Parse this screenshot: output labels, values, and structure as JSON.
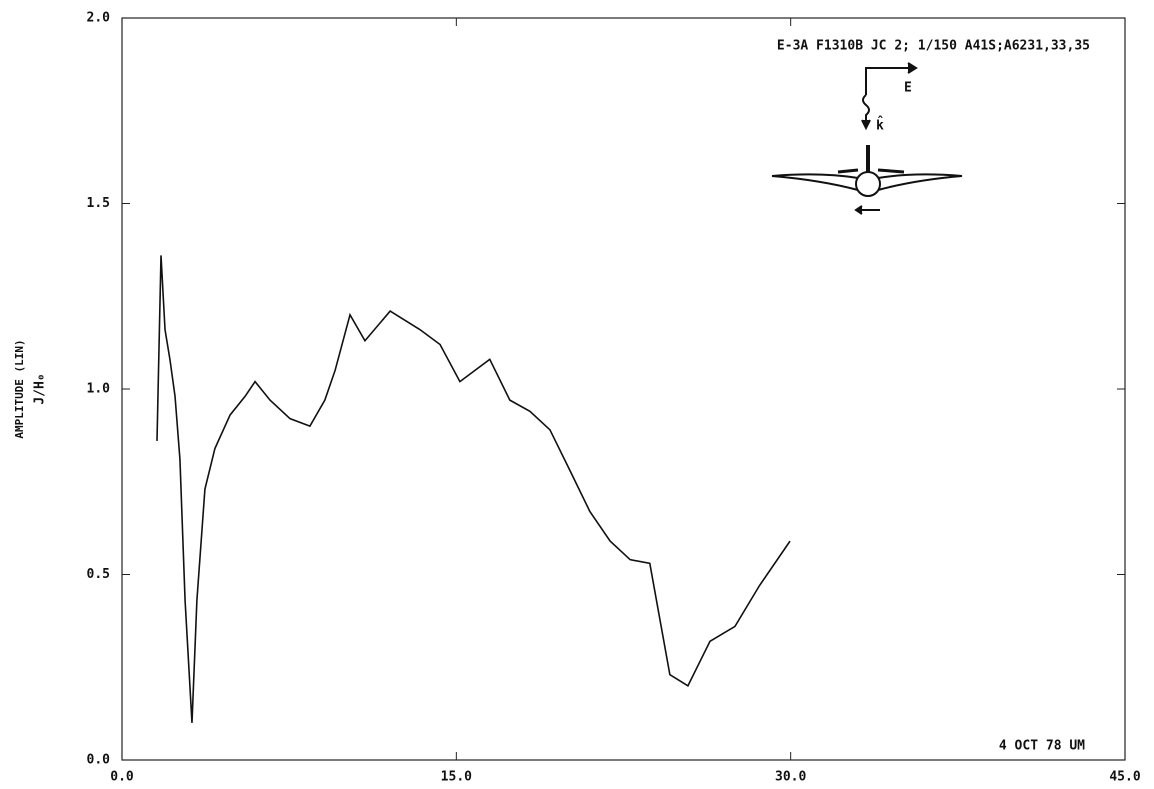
{
  "chart_data": {
    "type": "line",
    "title": "E-3A F1310B JC 2; 1/150 A41S;A6231,33,35",
    "ylabel": [
      "AMPLITUDE (LIN)",
      "J/H₀"
    ],
    "note": "4 OCT 78 UM",
    "diagram_labels": [
      "E",
      "k̂"
    ],
    "xlim": [
      0,
      45
    ],
    "ylim": [
      0,
      2
    ],
    "xticks": [
      {
        "value": 0,
        "label": "0.0"
      },
      {
        "value": 15,
        "label": "15.0"
      },
      {
        "value": 30,
        "label": "30.0"
      },
      {
        "value": 45,
        "label": "45.0"
      }
    ],
    "yticks": [
      {
        "value": 0,
        "label": "0.0"
      },
      0.5,
      {
        "value": 1,
        "label": "1.0"
      },
      1.5,
      {
        "value": 2,
        "label": "2.0"
      }
    ],
    "color": "#111111",
    "x": [
      1.57,
      1.75,
      1.93,
      2.15,
      2.38,
      2.6,
      2.83,
      3.14,
      3.36,
      3.72,
      4.17,
      4.85,
      5.52,
      5.97,
      6.64,
      7.54,
      8.43,
      9.1,
      9.56,
      10.23,
      10.9,
      12.03,
      13.37,
      14.27,
      15.16,
      16.5,
      17.4,
      18.3,
      19.2,
      20.1,
      20.99,
      21.9,
      22.8,
      23.68,
      24.58,
      25.39,
      26.38,
      27.5,
      28.6,
      29.97
    ],
    "values": [
      0.86,
      1.36,
      1.16,
      1.08,
      0.98,
      0.81,
      0.43,
      0.1,
      0.43,
      0.73,
      0.84,
      0.93,
      0.98,
      1.02,
      0.97,
      0.92,
      0.9,
      0.97,
      1.05,
      1.2,
      1.13,
      1.21,
      1.16,
      1.12,
      1.02,
      1.08,
      0.97,
      0.94,
      0.89,
      0.78,
      0.67,
      0.59,
      0.54,
      0.53,
      0.23,
      0.2,
      0.32,
      0.36,
      0.47,
      0.59
    ]
  }
}
